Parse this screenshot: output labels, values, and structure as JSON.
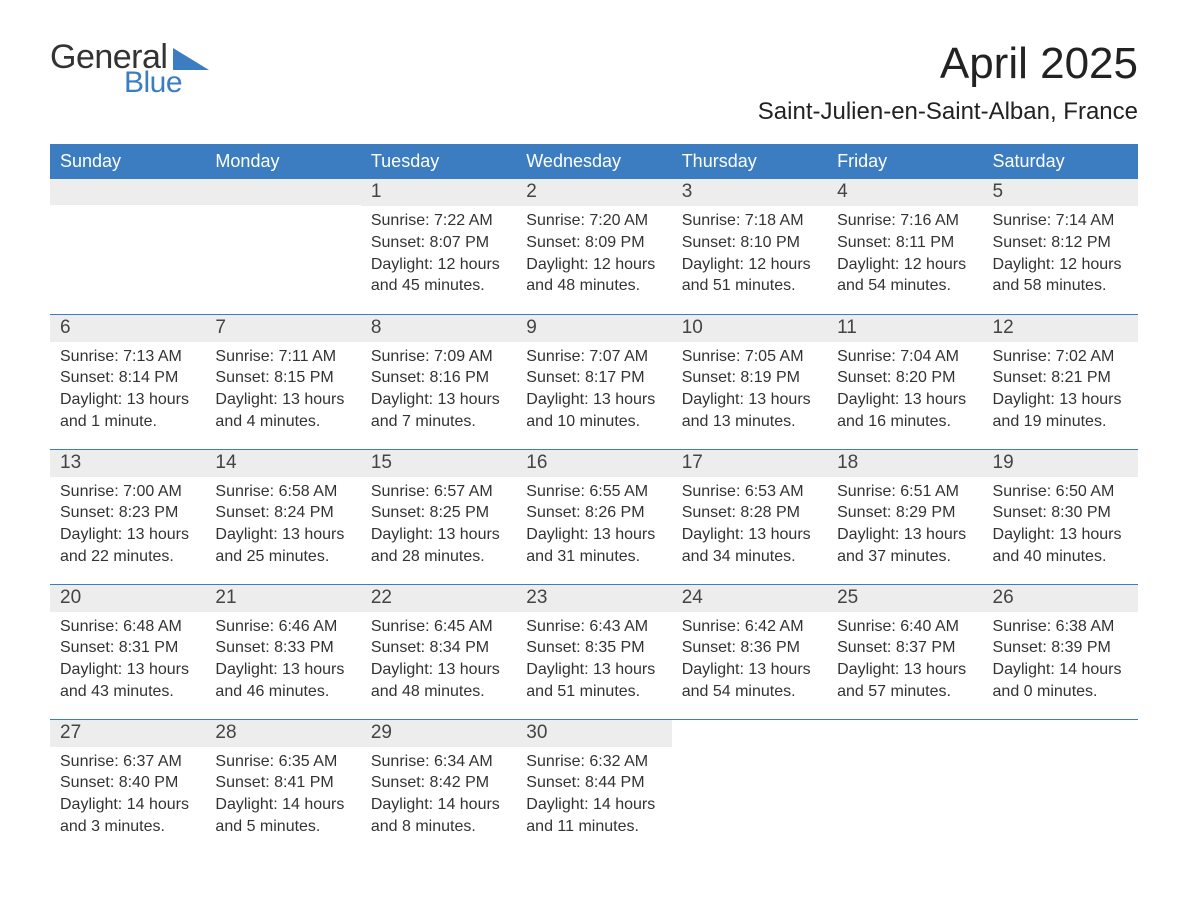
{
  "brand": {
    "word1": "General",
    "word2": "Blue",
    "tri_color": "#3b7dc0"
  },
  "title": "April 2025",
  "location": "Saint-Julien-en-Saint-Alban, France",
  "colors": {
    "header_bg": "#3b7dc0",
    "header_text": "#ffffff",
    "daybar_bg": "#ededed",
    "border": "#3b7dc0",
    "text": "#333333",
    "background": "#ffffff"
  },
  "day_headers": [
    "Sunday",
    "Monday",
    "Tuesday",
    "Wednesday",
    "Thursday",
    "Friday",
    "Saturday"
  ],
  "weeks": [
    [
      null,
      null,
      {
        "n": "1",
        "sunrise": "Sunrise: 7:22 AM",
        "sunset": "Sunset: 8:07 PM",
        "daylight": "Daylight: 12 hours and 45 minutes."
      },
      {
        "n": "2",
        "sunrise": "Sunrise: 7:20 AM",
        "sunset": "Sunset: 8:09 PM",
        "daylight": "Daylight: 12 hours and 48 minutes."
      },
      {
        "n": "3",
        "sunrise": "Sunrise: 7:18 AM",
        "sunset": "Sunset: 8:10 PM",
        "daylight": "Daylight: 12 hours and 51 minutes."
      },
      {
        "n": "4",
        "sunrise": "Sunrise: 7:16 AM",
        "sunset": "Sunset: 8:11 PM",
        "daylight": "Daylight: 12 hours and 54 minutes."
      },
      {
        "n": "5",
        "sunrise": "Sunrise: 7:14 AM",
        "sunset": "Sunset: 8:12 PM",
        "daylight": "Daylight: 12 hours and 58 minutes."
      }
    ],
    [
      {
        "n": "6",
        "sunrise": "Sunrise: 7:13 AM",
        "sunset": "Sunset: 8:14 PM",
        "daylight": "Daylight: 13 hours and 1 minute."
      },
      {
        "n": "7",
        "sunrise": "Sunrise: 7:11 AM",
        "sunset": "Sunset: 8:15 PM",
        "daylight": "Daylight: 13 hours and 4 minutes."
      },
      {
        "n": "8",
        "sunrise": "Sunrise: 7:09 AM",
        "sunset": "Sunset: 8:16 PM",
        "daylight": "Daylight: 13 hours and 7 minutes."
      },
      {
        "n": "9",
        "sunrise": "Sunrise: 7:07 AM",
        "sunset": "Sunset: 8:17 PM",
        "daylight": "Daylight: 13 hours and 10 minutes."
      },
      {
        "n": "10",
        "sunrise": "Sunrise: 7:05 AM",
        "sunset": "Sunset: 8:19 PM",
        "daylight": "Daylight: 13 hours and 13 minutes."
      },
      {
        "n": "11",
        "sunrise": "Sunrise: 7:04 AM",
        "sunset": "Sunset: 8:20 PM",
        "daylight": "Daylight: 13 hours and 16 minutes."
      },
      {
        "n": "12",
        "sunrise": "Sunrise: 7:02 AM",
        "sunset": "Sunset: 8:21 PM",
        "daylight": "Daylight: 13 hours and 19 minutes."
      }
    ],
    [
      {
        "n": "13",
        "sunrise": "Sunrise: 7:00 AM",
        "sunset": "Sunset: 8:23 PM",
        "daylight": "Daylight: 13 hours and 22 minutes."
      },
      {
        "n": "14",
        "sunrise": "Sunrise: 6:58 AM",
        "sunset": "Sunset: 8:24 PM",
        "daylight": "Daylight: 13 hours and 25 minutes."
      },
      {
        "n": "15",
        "sunrise": "Sunrise: 6:57 AM",
        "sunset": "Sunset: 8:25 PM",
        "daylight": "Daylight: 13 hours and 28 minutes."
      },
      {
        "n": "16",
        "sunrise": "Sunrise: 6:55 AM",
        "sunset": "Sunset: 8:26 PM",
        "daylight": "Daylight: 13 hours and 31 minutes."
      },
      {
        "n": "17",
        "sunrise": "Sunrise: 6:53 AM",
        "sunset": "Sunset: 8:28 PM",
        "daylight": "Daylight: 13 hours and 34 minutes."
      },
      {
        "n": "18",
        "sunrise": "Sunrise: 6:51 AM",
        "sunset": "Sunset: 8:29 PM",
        "daylight": "Daylight: 13 hours and 37 minutes."
      },
      {
        "n": "19",
        "sunrise": "Sunrise: 6:50 AM",
        "sunset": "Sunset: 8:30 PM",
        "daylight": "Daylight: 13 hours and 40 minutes."
      }
    ],
    [
      {
        "n": "20",
        "sunrise": "Sunrise: 6:48 AM",
        "sunset": "Sunset: 8:31 PM",
        "daylight": "Daylight: 13 hours and 43 minutes."
      },
      {
        "n": "21",
        "sunrise": "Sunrise: 6:46 AM",
        "sunset": "Sunset: 8:33 PM",
        "daylight": "Daylight: 13 hours and 46 minutes."
      },
      {
        "n": "22",
        "sunrise": "Sunrise: 6:45 AM",
        "sunset": "Sunset: 8:34 PM",
        "daylight": "Daylight: 13 hours and 48 minutes."
      },
      {
        "n": "23",
        "sunrise": "Sunrise: 6:43 AM",
        "sunset": "Sunset: 8:35 PM",
        "daylight": "Daylight: 13 hours and 51 minutes."
      },
      {
        "n": "24",
        "sunrise": "Sunrise: 6:42 AM",
        "sunset": "Sunset: 8:36 PM",
        "daylight": "Daylight: 13 hours and 54 minutes."
      },
      {
        "n": "25",
        "sunrise": "Sunrise: 6:40 AM",
        "sunset": "Sunset: 8:37 PM",
        "daylight": "Daylight: 13 hours and 57 minutes."
      },
      {
        "n": "26",
        "sunrise": "Sunrise: 6:38 AM",
        "sunset": "Sunset: 8:39 PM",
        "daylight": "Daylight: 14 hours and 0 minutes."
      }
    ],
    [
      {
        "n": "27",
        "sunrise": "Sunrise: 6:37 AM",
        "sunset": "Sunset: 8:40 PM",
        "daylight": "Daylight: 14 hours and 3 minutes."
      },
      {
        "n": "28",
        "sunrise": "Sunrise: 6:35 AM",
        "sunset": "Sunset: 8:41 PM",
        "daylight": "Daylight: 14 hours and 5 minutes."
      },
      {
        "n": "29",
        "sunrise": "Sunrise: 6:34 AM",
        "sunset": "Sunset: 8:42 PM",
        "daylight": "Daylight: 14 hours and 8 minutes."
      },
      {
        "n": "30",
        "sunrise": "Sunrise: 6:32 AM",
        "sunset": "Sunset: 8:44 PM",
        "daylight": "Daylight: 14 hours and 11 minutes."
      },
      null,
      null,
      null
    ]
  ]
}
